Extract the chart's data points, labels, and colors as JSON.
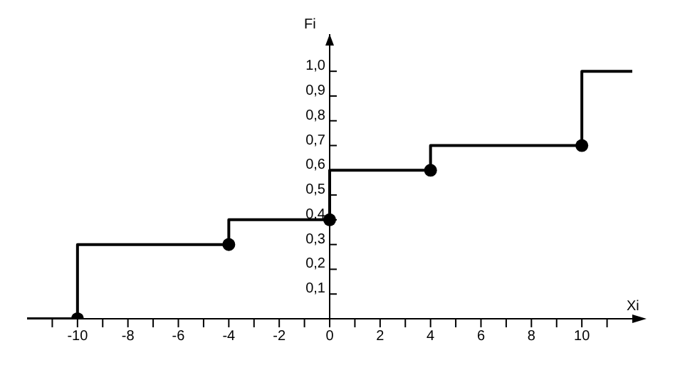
{
  "chart_data": {
    "type": "step",
    "xlabel": "Xi",
    "ylabel": "Fi",
    "xlim": [
      -12,
      12
    ],
    "ylim": [
      0,
      1.15
    ],
    "xticks": [
      {
        "value": -11,
        "label": null
      },
      -10,
      {
        "value": -9,
        "label": null
      },
      -8,
      {
        "value": -7,
        "label": null
      },
      -6,
      {
        "value": -5,
        "label": null
      },
      -4,
      {
        "value": -3,
        "label": null
      },
      -2,
      {
        "value": -1,
        "label": null
      },
      0,
      {
        "value": 1,
        "label": null
      },
      2,
      {
        "value": 3,
        "label": null
      },
      4,
      {
        "value": 5,
        "label": null
      },
      6,
      {
        "value": 7,
        "label": null
      },
      8,
      {
        "value": 9,
        "label": null
      },
      10,
      {
        "value": 11,
        "label": null
      }
    ],
    "yticks": [
      {
        "value": 0.1,
        "label": "0,1"
      },
      {
        "value": 0.2,
        "label": "0,2"
      },
      {
        "value": 0.3,
        "label": "0,3"
      },
      {
        "value": 0.4,
        "label": "0,4"
      },
      {
        "value": 0.5,
        "label": "0,5"
      },
      {
        "value": 0.6,
        "label": "0,6"
      },
      {
        "value": 0.7,
        "label": "0,7"
      },
      {
        "value": 0.8,
        "label": "0,8"
      },
      {
        "value": 0.9,
        "label": "0,9"
      },
      {
        "value": 1.0,
        "label": "1,0"
      }
    ],
    "series": [
      {
        "x": [
          -12,
          -10,
          -4,
          0,
          4,
          10,
          12
        ],
        "values": [
          0,
          0.3,
          0.4,
          0.6,
          0.7,
          1,
          1
        ],
        "color": "#000000",
        "marker": "none"
      },
      {
        "type": "scatter",
        "x": [
          -10,
          -4,
          0,
          4,
          10
        ],
        "values": [
          0,
          0.3,
          0.4,
          0.6,
          0.7
        ],
        "color": "#000000",
        "marker": "circle"
      }
    ]
  }
}
